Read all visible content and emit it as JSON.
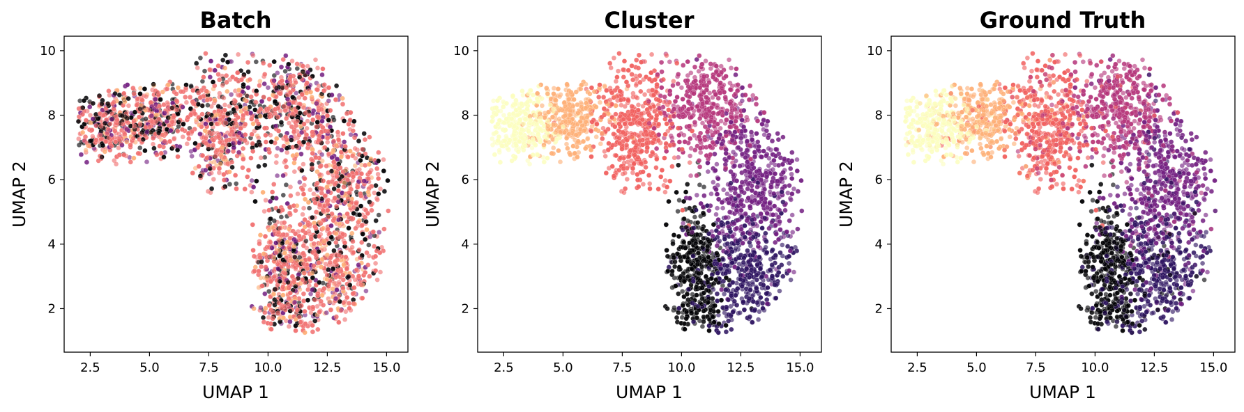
{
  "chart_data": [
    {
      "type": "scatter",
      "title": "Batch",
      "xlabel": "UMAP 1",
      "ylabel": "UMAP 2",
      "xlim": [
        1.4,
        15.9
      ],
      "ylim": [
        0.65,
        10.45
      ],
      "xticks": [
        2.5,
        5.0,
        7.5,
        10.0,
        12.5,
        15.0
      ],
      "xtick_labels": [
        "2.5",
        "5.0",
        "7.5",
        "10.0",
        "12.5",
        "15.0"
      ],
      "yticks": [
        2,
        4,
        6,
        8,
        10
      ],
      "ytick_labels": [
        "2",
        "4",
        "6",
        "8",
        "10"
      ],
      "grid": false,
      "legend": "none",
      "palette": "magma",
      "coloring": "batch",
      "dominant_color": "#f07070"
    },
    {
      "type": "scatter",
      "title": "Cluster",
      "xlabel": "UMAP 1",
      "ylabel": "UMAP 2",
      "xlim": [
        1.4,
        15.9
      ],
      "ylim": [
        0.65,
        10.45
      ],
      "xticks": [
        2.5,
        5.0,
        7.5,
        10.0,
        12.5,
        15.0
      ],
      "xtick_labels": [
        "2.5",
        "5.0",
        "7.5",
        "10.0",
        "12.5",
        "15.0"
      ],
      "yticks": [
        2,
        4,
        6,
        8,
        10
      ],
      "ytick_labels": [
        "2",
        "4",
        "6",
        "8",
        "10"
      ],
      "grid": false,
      "legend": "none",
      "palette": "magma",
      "coloring": "cluster"
    },
    {
      "type": "scatter",
      "title": "Ground Truth",
      "xlabel": "UMAP 1",
      "ylabel": "UMAP 2",
      "xlim": [
        1.4,
        15.9
      ],
      "ylim": [
        0.65,
        10.45
      ],
      "xticks": [
        2.5,
        5.0,
        7.5,
        10.0,
        12.5,
        15.0
      ],
      "xtick_labels": [
        "2.5",
        "5.0",
        "7.5",
        "10.0",
        "12.5",
        "15.0"
      ],
      "yticks": [
        2,
        4,
        6,
        8,
        10
      ],
      "ytick_labels": [
        "2",
        "4",
        "6",
        "8",
        "10"
      ],
      "grid": false,
      "legend": "none",
      "palette": "magma",
      "coloring": "ground-truth"
    }
  ],
  "clusters": [
    {
      "center": [
        3.2,
        7.6
      ],
      "spread": [
        0.75,
        0.55
      ],
      "weight": 0.1,
      "color": "#fcfdbf"
    },
    {
      "center": [
        5.3,
        7.9
      ],
      "spread": [
        0.8,
        0.6
      ],
      "weight": 0.1,
      "color": "#feb078"
    },
    {
      "center": [
        8.0,
        7.6
      ],
      "spread": [
        0.9,
        1.0
      ],
      "weight": 0.14,
      "color": "#f1605d"
    },
    {
      "center": [
        11.0,
        8.3
      ],
      "spread": [
        1.0,
        0.85
      ],
      "weight": 0.14,
      "color": "#b5367a"
    },
    {
      "center": [
        13.0,
        5.9
      ],
      "spread": [
        1.0,
        1.2
      ],
      "weight": 0.18,
      "color": "#721f81"
    },
    {
      "center": [
        12.7,
        3.1
      ],
      "spread": [
        1.1,
        1.0
      ],
      "weight": 0.16,
      "color": "#2c115f"
    },
    {
      "center": [
        10.6,
        3.0
      ],
      "spread": [
        0.55,
        1.1
      ],
      "weight": 0.14,
      "color": "#000004"
    }
  ],
  "batch_colors": [
    "#f07070",
    "#f07070",
    "#f07070",
    "#f07070",
    "#f07070",
    "#000004",
    "#000004",
    "#feb078",
    "#721f81"
  ]
}
